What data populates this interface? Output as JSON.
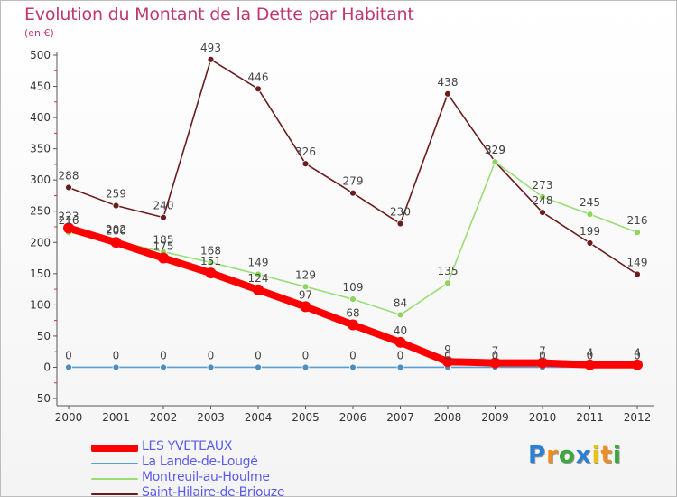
{
  "title": "Evolution du Montant de la Dette par Habitant",
  "subtitle": "(en €)",
  "chart_data": {
    "type": "line",
    "title": "Evolution du Montant de la Dette par Habitant",
    "subtitle": "(en €)",
    "xlabel": "",
    "ylabel": "",
    "x": [
      2000,
      2001,
      2002,
      2003,
      2004,
      2005,
      2006,
      2007,
      2008,
      2009,
      2010,
      2011,
      2012
    ],
    "ylim": [
      -50,
      500
    ],
    "yticks": [
      -50,
      0,
      50,
      100,
      150,
      200,
      250,
      300,
      350,
      400,
      450,
      500
    ],
    "grid": false,
    "legend_position": "bottom-left",
    "series": [
      {
        "name": "LES YVETEAUX",
        "color": "#ff0000",
        "values": [
          223,
          200,
          175,
          151,
          124,
          97,
          68,
          40,
          9,
          7,
          7,
          4,
          4
        ],
        "labels": [
          "223",
          "200",
          "175",
          "151",
          "124",
          "97",
          "68",
          "40",
          "9",
          "7",
          "7",
          "4",
          "4"
        ]
      },
      {
        "name": "La Lande-de-Lougé",
        "color": "#5a9fd1",
        "values": [
          0,
          0,
          0,
          0,
          0,
          0,
          0,
          0,
          0,
          0,
          0,
          0,
          0
        ],
        "labels": [
          "0",
          "0",
          "0",
          "0",
          "0",
          "0",
          "0",
          "0",
          "0",
          "0",
          "0",
          "0",
          "0"
        ]
      },
      {
        "name": "Montreuil-au-Houlme",
        "color": "#99dd77",
        "values": [
          216,
          202,
          185,
          168,
          149,
          129,
          109,
          84,
          135,
          329,
          273,
          245,
          216
        ],
        "labels": [
          "216",
          "202",
          "185",
          "168",
          "149",
          "129",
          "109",
          "84",
          "135",
          "329",
          "273",
          "245",
          "216"
        ]
      },
      {
        "name": "Saint-Hilaire-de-Briouze",
        "color": "#6b1d1d",
        "values": [
          288,
          259,
          240,
          493,
          446,
          326,
          279,
          230,
          438,
          329,
          248,
          199,
          149
        ],
        "labels": [
          "288",
          "259",
          "240",
          "493",
          "446",
          "326",
          "279",
          "230",
          "438",
          "329",
          "248",
          "199",
          "149"
        ]
      }
    ]
  },
  "legend": {
    "items": [
      {
        "name": "LES YVETEAUX",
        "color": "#ff0000",
        "text_color": "#5b5bea"
      },
      {
        "name": "La Lande-de-Lougé",
        "color": "#5a9fd1",
        "text_color": "#5b5bea"
      },
      {
        "name": "Montreuil-au-Houlme",
        "color": "#99dd77",
        "text_color": "#5b5bea"
      },
      {
        "name": "Saint-Hilaire-de-Briouze",
        "color": "#6b1d1d",
        "text_color": "#5b5bea"
      }
    ]
  },
  "logo": {
    "text": "Proxiti",
    "letters": [
      "P",
      "r",
      "o",
      "x",
      "i",
      "t",
      "i"
    ],
    "colors": [
      "#2b7fd4",
      "#f28c1e",
      "#3aa83a",
      "#2b7fd4",
      "#e6c214",
      "#f28c1e",
      "#3aa83a"
    ]
  }
}
